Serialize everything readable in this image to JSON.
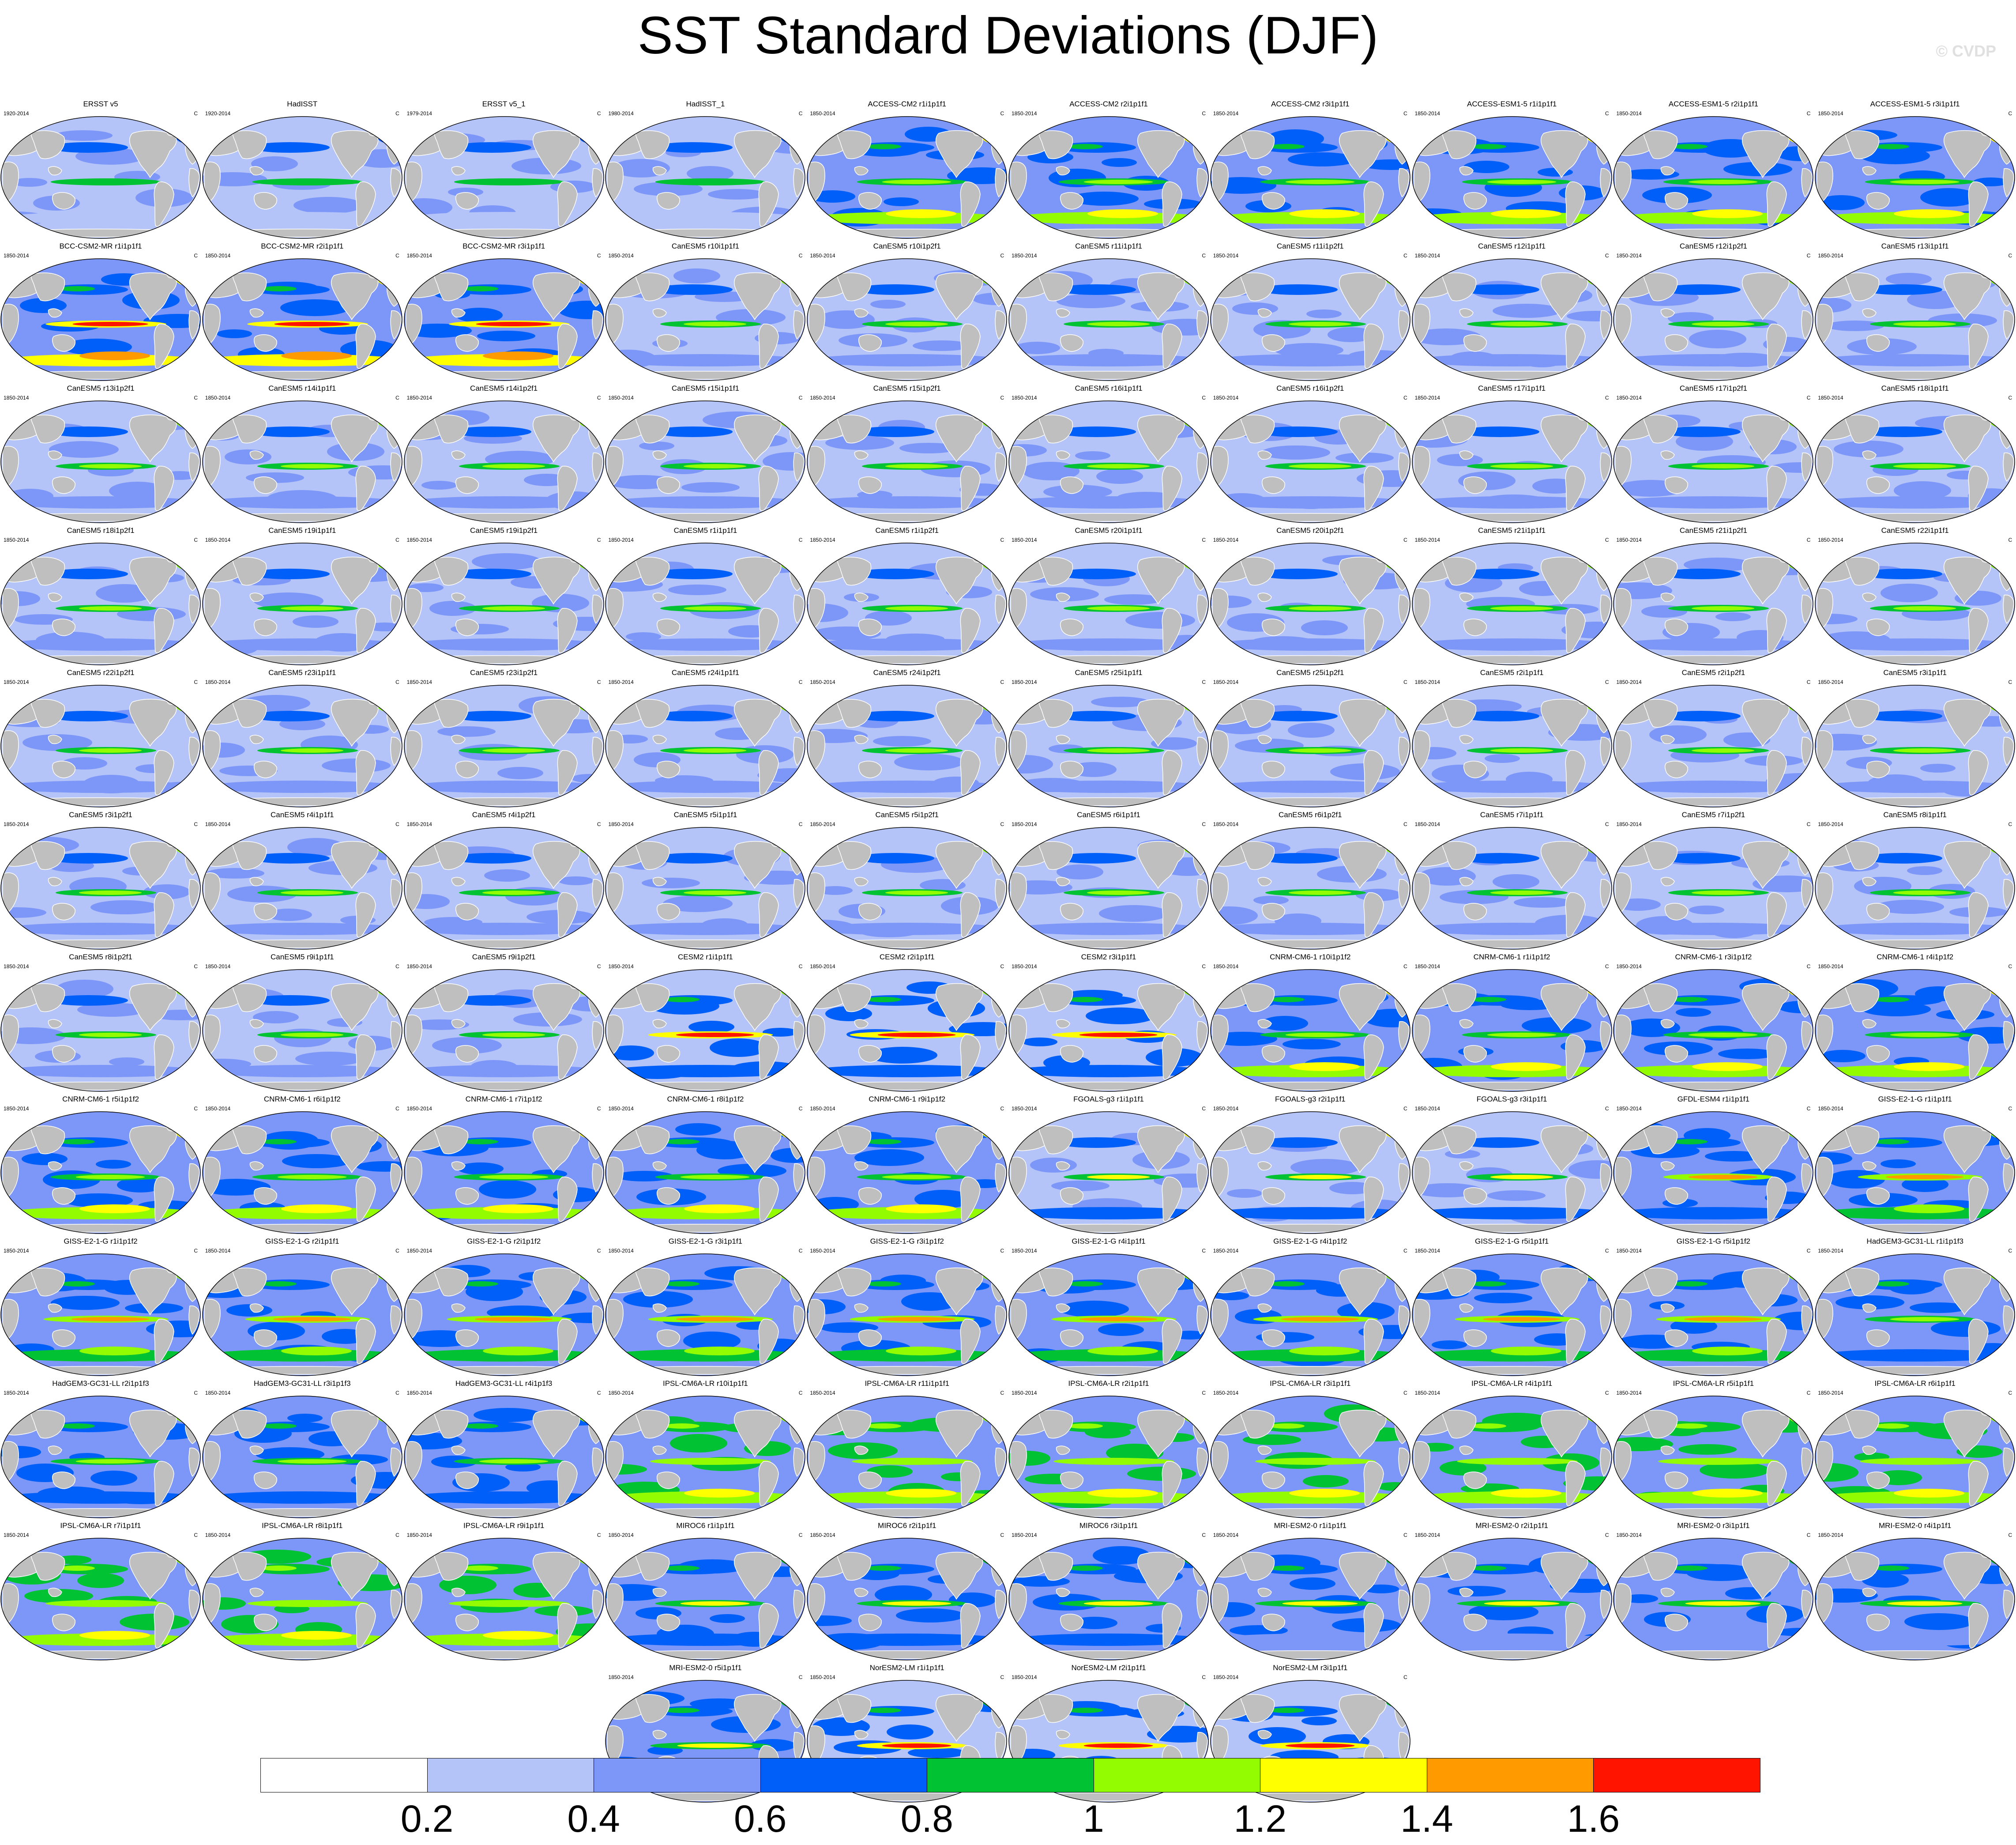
{
  "title": "SST Standard Deviations (DJF)",
  "copyright": "© CVDP",
  "units": "C",
  "panels": [
    {
      "name": "ERSST v5",
      "years": "1920-2014",
      "kind": "obs"
    },
    {
      "name": "HadISST",
      "years": "1920-2014",
      "kind": "obs"
    },
    {
      "name": "ERSST v5_1",
      "years": "1979-2014",
      "kind": "obs"
    },
    {
      "name": "HadISST_1",
      "years": "1980-2014",
      "kind": "obs"
    },
    {
      "name": "ACCESS-CM2 r1i1p1f1",
      "years": "1850-2014",
      "kind": "access"
    },
    {
      "name": "ACCESS-CM2 r2i1p1f1",
      "years": "1850-2014",
      "kind": "access"
    },
    {
      "name": "ACCESS-CM2 r3i1p1f1",
      "years": "1850-2014",
      "kind": "access"
    },
    {
      "name": "ACCESS-ESM1-5 r1i1p1f1",
      "years": "1850-2014",
      "kind": "access"
    },
    {
      "name": "ACCESS-ESM1-5 r2i1p1f1",
      "years": "1850-2014",
      "kind": "access"
    },
    {
      "name": "ACCESS-ESM1-5 r3i1p1f1",
      "years": "1850-2014",
      "kind": "access"
    },
    {
      "name": "BCC-CSM2-MR r1i1p1f1",
      "years": "1850-2014",
      "kind": "bcc"
    },
    {
      "name": "BCC-CSM2-MR r2i1p1f1",
      "years": "1850-2014",
      "kind": "bcc"
    },
    {
      "name": "BCC-CSM2-MR r3i1p1f1",
      "years": "1850-2014",
      "kind": "bcc"
    },
    {
      "name": "CanESM5 r10i1p1f1",
      "years": "1850-2014",
      "kind": "can"
    },
    {
      "name": "CanESM5 r10i1p2f1",
      "years": "1850-2014",
      "kind": "can"
    },
    {
      "name": "CanESM5 r11i1p1f1",
      "years": "1850-2014",
      "kind": "can"
    },
    {
      "name": "CanESM5 r11i1p2f1",
      "years": "1850-2014",
      "kind": "can"
    },
    {
      "name": "CanESM5 r12i1p1f1",
      "years": "1850-2014",
      "kind": "can"
    },
    {
      "name": "CanESM5 r12i1p2f1",
      "years": "1850-2014",
      "kind": "can"
    },
    {
      "name": "CanESM5 r13i1p1f1",
      "years": "1850-2014",
      "kind": "can"
    },
    {
      "name": "CanESM5 r13i1p2f1",
      "years": "1850-2014",
      "kind": "can"
    },
    {
      "name": "CanESM5 r14i1p1f1",
      "years": "1850-2014",
      "kind": "can"
    },
    {
      "name": "CanESM5 r14i1p2f1",
      "years": "1850-2014",
      "kind": "can"
    },
    {
      "name": "CanESM5 r15i1p1f1",
      "years": "1850-2014",
      "kind": "can"
    },
    {
      "name": "CanESM5 r15i1p2f1",
      "years": "1850-2014",
      "kind": "can"
    },
    {
      "name": "CanESM5 r16i1p1f1",
      "years": "1850-2014",
      "kind": "can"
    },
    {
      "name": "CanESM5 r16i1p2f1",
      "years": "1850-2014",
      "kind": "can"
    },
    {
      "name": "CanESM5 r17i1p1f1",
      "years": "1850-2014",
      "kind": "can"
    },
    {
      "name": "CanESM5 r17i1p2f1",
      "years": "1850-2014",
      "kind": "can"
    },
    {
      "name": "CanESM5 r18i1p1f1",
      "years": "1850-2014",
      "kind": "can"
    },
    {
      "name": "CanESM5 r18i1p2f1",
      "years": "1850-2014",
      "kind": "can"
    },
    {
      "name": "CanESM5 r19i1p1f1",
      "years": "1850-2014",
      "kind": "can"
    },
    {
      "name": "CanESM5 r19i1p2f1",
      "years": "1850-2014",
      "kind": "can"
    },
    {
      "name": "CanESM5 r1i1p1f1",
      "years": "1850-2014",
      "kind": "can"
    },
    {
      "name": "CanESM5 r1i1p2f1",
      "years": "1850-2014",
      "kind": "can"
    },
    {
      "name": "CanESM5 r20i1p1f1",
      "years": "1850-2014",
      "kind": "can"
    },
    {
      "name": "CanESM5 r20i1p2f1",
      "years": "1850-2014",
      "kind": "can"
    },
    {
      "name": "CanESM5 r21i1p1f1",
      "years": "1850-2014",
      "kind": "can"
    },
    {
      "name": "CanESM5 r21i1p2f1",
      "years": "1850-2014",
      "kind": "can"
    },
    {
      "name": "CanESM5 r22i1p1f1",
      "years": "1850-2014",
      "kind": "can"
    },
    {
      "name": "CanESM5 r22i1p2f1",
      "years": "1850-2014",
      "kind": "can"
    },
    {
      "name": "CanESM5 r23i1p1f1",
      "years": "1850-2014",
      "kind": "can"
    },
    {
      "name": "CanESM5 r23i1p2f1",
      "years": "1850-2014",
      "kind": "can"
    },
    {
      "name": "CanESM5 r24i1p1f1",
      "years": "1850-2014",
      "kind": "can"
    },
    {
      "name": "CanESM5 r24i1p2f1",
      "years": "1850-2014",
      "kind": "can"
    },
    {
      "name": "CanESM5 r25i1p1f1",
      "years": "1850-2014",
      "kind": "can"
    },
    {
      "name": "CanESM5 r25i1p2f1",
      "years": "1850-2014",
      "kind": "can"
    },
    {
      "name": "CanESM5 r2i1p1f1",
      "years": "1850-2014",
      "kind": "can"
    },
    {
      "name": "CanESM5 r2i1p2f1",
      "years": "1850-2014",
      "kind": "can"
    },
    {
      "name": "CanESM5 r3i1p1f1",
      "years": "1850-2014",
      "kind": "can"
    },
    {
      "name": "CanESM5 r3i1p2f1",
      "years": "1850-2014",
      "kind": "can"
    },
    {
      "name": "CanESM5 r4i1p1f1",
      "years": "1850-2014",
      "kind": "can"
    },
    {
      "name": "CanESM5 r4i1p2f1",
      "years": "1850-2014",
      "kind": "can"
    },
    {
      "name": "CanESM5 r5i1p1f1",
      "years": "1850-2014",
      "kind": "can"
    },
    {
      "name": "CanESM5 r5i1p2f1",
      "years": "1850-2014",
      "kind": "can"
    },
    {
      "name": "CanESM5 r6i1p1f1",
      "years": "1850-2014",
      "kind": "can"
    },
    {
      "name": "CanESM5 r6i1p2f1",
      "years": "1850-2014",
      "kind": "can"
    },
    {
      "name": "CanESM5 r7i1p1f1",
      "years": "1850-2014",
      "kind": "can"
    },
    {
      "name": "CanESM5 r7i1p2f1",
      "years": "1850-2014",
      "kind": "can"
    },
    {
      "name": "CanESM5 r8i1p1f1",
      "years": "1850-2014",
      "kind": "can"
    },
    {
      "name": "CanESM5 r8i1p2f1",
      "years": "1850-2014",
      "kind": "can"
    },
    {
      "name": "CanESM5 r9i1p1f1",
      "years": "1850-2014",
      "kind": "can"
    },
    {
      "name": "CanESM5 r9i1p2f1",
      "years": "1850-2014",
      "kind": "can"
    },
    {
      "name": "CESM2 r1i1p1f1",
      "years": "1850-2014",
      "kind": "cesm"
    },
    {
      "name": "CESM2 r2i1p1f1",
      "years": "1850-2014",
      "kind": "cesm"
    },
    {
      "name": "CESM2 r3i1p1f1",
      "years": "1850-2014",
      "kind": "cesm"
    },
    {
      "name": "CNRM-CM6-1 r10i1p1f2",
      "years": "1850-2014",
      "kind": "cnrm"
    },
    {
      "name": "CNRM-CM6-1 r1i1p1f2",
      "years": "1850-2014",
      "kind": "cnrm"
    },
    {
      "name": "CNRM-CM6-1 r3i1p1f2",
      "years": "1850-2014",
      "kind": "cnrm"
    },
    {
      "name": "CNRM-CM6-1 r4i1p1f2",
      "years": "1850-2014",
      "kind": "cnrm"
    },
    {
      "name": "CNRM-CM6-1 r5i1p1f2",
      "years": "1850-2014",
      "kind": "cnrm"
    },
    {
      "name": "CNRM-CM6-1 r6i1p1f2",
      "years": "1850-2014",
      "kind": "cnrm"
    },
    {
      "name": "CNRM-CM6-1 r7i1p1f2",
      "years": "1850-2014",
      "kind": "cnrm"
    },
    {
      "name": "CNRM-CM6-1 r8i1p1f2",
      "years": "1850-2014",
      "kind": "cnrm"
    },
    {
      "name": "CNRM-CM6-1 r9i1p1f2",
      "years": "1850-2014",
      "kind": "cnrm"
    },
    {
      "name": "FGOALS-g3 r1i1p1f1",
      "years": "1850-2014",
      "kind": "fgoals"
    },
    {
      "name": "FGOALS-g3 r2i1p1f1",
      "years": "1850-2014",
      "kind": "fgoals"
    },
    {
      "name": "FGOALS-g3 r3i1p1f1",
      "years": "1850-2014",
      "kind": "fgoals"
    },
    {
      "name": "GFDL-ESM4 r1i1p1f1",
      "years": "1850-2014",
      "kind": "gfdl"
    },
    {
      "name": "GISS-E2-1-G r1i1p1f1",
      "years": "1850-2014",
      "kind": "giss"
    },
    {
      "name": "GISS-E2-1-G r1i1p1f2",
      "years": "1850-2014",
      "kind": "giss"
    },
    {
      "name": "GISS-E2-1-G r2i1p1f1",
      "years": "1850-2014",
      "kind": "giss"
    },
    {
      "name": "GISS-E2-1-G r2i1p1f2",
      "years": "1850-2014",
      "kind": "giss"
    },
    {
      "name": "GISS-E2-1-G r3i1p1f1",
      "years": "1850-2014",
      "kind": "giss"
    },
    {
      "name": "GISS-E2-1-G r3i1p1f2",
      "years": "1850-2014",
      "kind": "giss"
    },
    {
      "name": "GISS-E2-1-G r4i1p1f1",
      "years": "1850-2014",
      "kind": "giss"
    },
    {
      "name": "GISS-E2-1-G r4i1p1f2",
      "years": "1850-2014",
      "kind": "giss"
    },
    {
      "name": "GISS-E2-1-G r5i1p1f1",
      "years": "1850-2014",
      "kind": "giss"
    },
    {
      "name": "GISS-E2-1-G r5i1p1f2",
      "years": "1850-2014",
      "kind": "giss"
    },
    {
      "name": "HadGEM3-GC31-LL r1i1p1f3",
      "years": "1850-2014",
      "kind": "hadgem"
    },
    {
      "name": "HadGEM3-GC31-LL r2i1p1f3",
      "years": "1850-2014",
      "kind": "hadgem"
    },
    {
      "name": "HadGEM3-GC31-LL r3i1p1f3",
      "years": "1850-2014",
      "kind": "hadgem"
    },
    {
      "name": "HadGEM3-GC31-LL r4i1p1f3",
      "years": "1850-2014",
      "kind": "hadgem"
    },
    {
      "name": "IPSL-CM6A-LR r10i1p1f1",
      "years": "1850-2014",
      "kind": "ipsl"
    },
    {
      "name": "IPSL-CM6A-LR r11i1p1f1",
      "years": "1850-2014",
      "kind": "ipsl"
    },
    {
      "name": "IPSL-CM6A-LR r2i1p1f1",
      "years": "1850-2014",
      "kind": "ipsl"
    },
    {
      "name": "IPSL-CM6A-LR r3i1p1f1",
      "years": "1850-2014",
      "kind": "ipsl"
    },
    {
      "name": "IPSL-CM6A-LR r4i1p1f1",
      "years": "1850-2014",
      "kind": "ipsl"
    },
    {
      "name": "IPSL-CM6A-LR r5i1p1f1",
      "years": "1850-2014",
      "kind": "ipsl"
    },
    {
      "name": "IPSL-CM6A-LR r6i1p1f1",
      "years": "1850-2014",
      "kind": "ipsl"
    },
    {
      "name": "IPSL-CM6A-LR r7i1p1f1",
      "years": "1850-2014",
      "kind": "ipsl"
    },
    {
      "name": "IPSL-CM6A-LR r8i1p1f1",
      "years": "1850-2014",
      "kind": "ipsl"
    },
    {
      "name": "IPSL-CM6A-LR r9i1p1f1",
      "years": "1850-2014",
      "kind": "ipsl"
    },
    {
      "name": "MIROC6 r1i1p1f1",
      "years": "1850-2014",
      "kind": "miroc"
    },
    {
      "name": "MIROC6 r2i1p1f1",
      "years": "1850-2014",
      "kind": "miroc"
    },
    {
      "name": "MIROC6 r3i1p1f1",
      "years": "1850-2014",
      "kind": "miroc"
    },
    {
      "name": "MRI-ESM2-0 r1i1p1f1",
      "years": "1850-2014",
      "kind": "mri"
    },
    {
      "name": "MRI-ESM2-0 r2i1p1f1",
      "years": "1850-2014",
      "kind": "mri"
    },
    {
      "name": "MRI-ESM2-0 r3i1p1f1",
      "years": "1850-2014",
      "kind": "mri"
    },
    {
      "name": "MRI-ESM2-0 r4i1p1f1",
      "years": "1850-2014",
      "kind": "mri"
    },
    {
      "name": "MRI-ESM2-0 r5i1p1f1",
      "years": "1850-2014",
      "kind": "mri"
    },
    {
      "name": "NorESM2-LM r1i1p1f1",
      "years": "1850-2014",
      "kind": "noresm"
    },
    {
      "name": "NorESM2-LM r2i1p1f1",
      "years": "1850-2014",
      "kind": "noresm"
    },
    {
      "name": "NorESM2-LM r3i1p1f1",
      "years": "1850-2014",
      "kind": "noresm"
    }
  ],
  "colors": {
    "land": "#bfbfbf",
    "coast": "#ffffff",
    "levels": [
      "#ffffff",
      "#b4c3f8",
      "#7d97f8",
      "#005ff8",
      "#00c233",
      "#93fc00",
      "#ffff00",
      "#ff9a00",
      "#ff1400"
    ]
  },
  "colorbar": {
    "ticks": [
      "0.2",
      "0.4",
      "0.6",
      "0.8",
      "1",
      "1.2",
      "1.4",
      "1.6"
    ]
  }
}
